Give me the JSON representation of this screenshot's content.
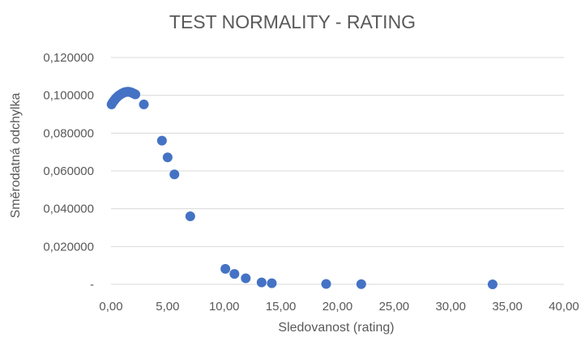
{
  "chart_data": {
    "type": "scatter",
    "title": "TEST NORMALITY - RATING",
    "xlabel": "Sledovanost (rating)",
    "ylabel": "Směrodatná odchylka",
    "xlim": [
      0,
      40
    ],
    "ylim": [
      0,
      0.12
    ],
    "x_ticks": [
      0,
      5,
      10,
      15,
      20,
      25,
      30,
      35,
      40
    ],
    "x_tick_labels": [
      "0,00",
      "5,00",
      "10,00",
      "15,00",
      "20,00",
      "25,00",
      "30,00",
      "35,00",
      "40,00"
    ],
    "y_ticks": [
      0,
      0.02,
      0.04,
      0.06,
      0.08,
      0.1,
      0.12
    ],
    "y_tick_labels": [
      "-",
      "0,020000",
      "0,040000",
      "0,060000",
      "0,080000",
      "0,100000",
      "0,120000"
    ],
    "grid": true,
    "color": "#4472c4",
    "series": [
      {
        "x": [
          0.05,
          0.15,
          0.25,
          0.35,
          0.45,
          0.55,
          0.65,
          0.75,
          0.85,
          0.95,
          1.05,
          1.15,
          1.25,
          1.35,
          1.45,
          1.55,
          1.65,
          1.75,
          1.85,
          1.95,
          2.05,
          2.15,
          2.9,
          4.5,
          5.0,
          5.6,
          7.0,
          10.1,
          10.9,
          11.9,
          13.3,
          14.2,
          19.0,
          22.1,
          33.7
        ],
        "y": [
          0.0952,
          0.0962,
          0.097,
          0.0978,
          0.0985,
          0.0991,
          0.0997,
          0.1001,
          0.1005,
          0.1009,
          0.1012,
          0.1015,
          0.1017,
          0.1018,
          0.1019,
          0.1019,
          0.1018,
          0.1016,
          0.1014,
          0.1011,
          0.1008,
          0.1005,
          0.0952,
          0.076,
          0.0672,
          0.0582,
          0.036,
          0.0082,
          0.0055,
          0.0032,
          0.001,
          0.0006,
          0.0002,
          0.0001,
          0.0
        ]
      }
    ]
  }
}
